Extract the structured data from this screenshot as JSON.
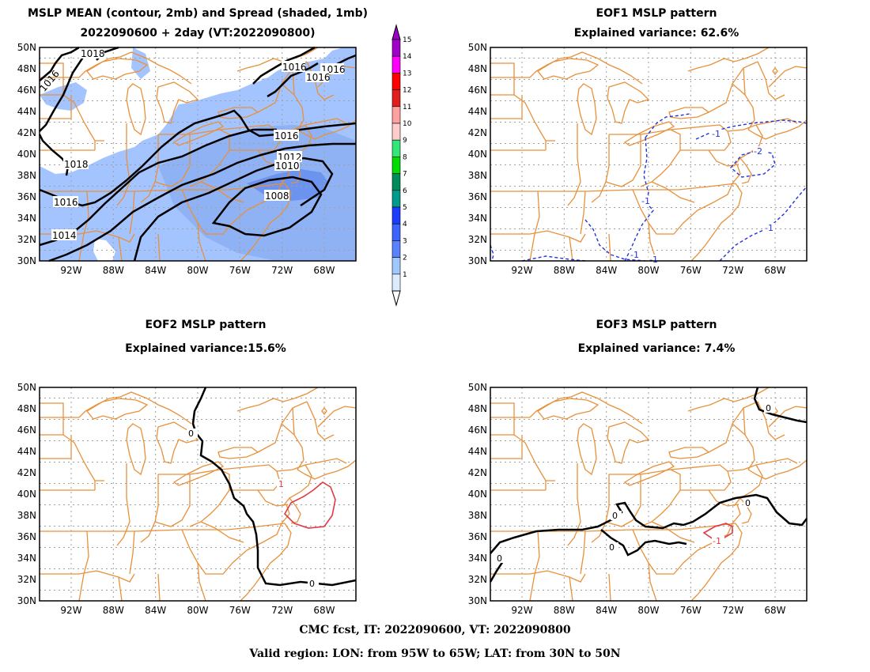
{
  "panels": [
    {
      "id": "mean",
      "title_line1": "MSLP MEAN (contour, 2mb) and Spread (shaded, 1mb)",
      "title_line2": "2022090600 + 2day (VT:2022090800)"
    },
    {
      "id": "eof1",
      "title_line1": "EOF1 MSLP pattern",
      "title_line2": "Explained variance: 62.6%"
    },
    {
      "id": "eof2",
      "title_line1": "EOF2 MSLP pattern",
      "title_line2": "Explained variance:15.6%"
    },
    {
      "id": "eof3",
      "title_line1": "EOF3 MSLP pattern",
      "title_line2": "Explained variance: 7.4%"
    }
  ],
  "axes": {
    "lat_labels": [
      "50N",
      "48N",
      "46N",
      "44N",
      "42N",
      "40N",
      "38N",
      "36N",
      "34N",
      "32N",
      "30N"
    ],
    "lon_labels": [
      "92W",
      "88W",
      "84W",
      "80W",
      "76W",
      "72W",
      "68W"
    ]
  },
  "colorbar": {
    "levels": [
      "15",
      "14",
      "13",
      "12",
      "11",
      "10",
      "9",
      "8",
      "7",
      "6",
      "5",
      "4",
      "3",
      "2",
      "1"
    ],
    "colors": [
      "#a000c8",
      "#ff00ff",
      "#ff0000",
      "#e01e1e",
      "#fea0a0",
      "#ffcccc",
      "#32e678",
      "#00dc00",
      "#008c5a",
      "#009b8c",
      "#1e3cff",
      "#3c64ff",
      "#5a82ff",
      "#a0c8ff",
      "#dcebff"
    ]
  },
  "colors": {
    "boundary": "#e8913a",
    "spread_light": "#a3c4ff",
    "spread_mid": "#8fb2f5",
    "spread_dark": "#6c93ee",
    "eof_positive": "#e03a45",
    "eof_negative": "#2233dd",
    "contour": "#000000"
  },
  "contour_labels": {
    "mean": [
      "1018",
      "1016",
      "1016",
      "1016",
      "1016",
      "1018",
      "1016",
      "1014",
      "1016",
      "1012",
      "1010",
      "1008"
    ],
    "eof1": [
      "-1",
      "-2",
      "-1",
      "-1",
      "-1",
      "-1"
    ],
    "eof2": [
      "0",
      "0",
      "1"
    ],
    "eof3": [
      "0",
      "0",
      "0",
      "0",
      "0",
      "-1"
    ]
  },
  "footer": {
    "line1": "CMC fcst, IT: 2022090600, VT: 2022090800",
    "line2": "Valid region: LON: from 95W to 65W; LAT: from 30N to 50N"
  }
}
